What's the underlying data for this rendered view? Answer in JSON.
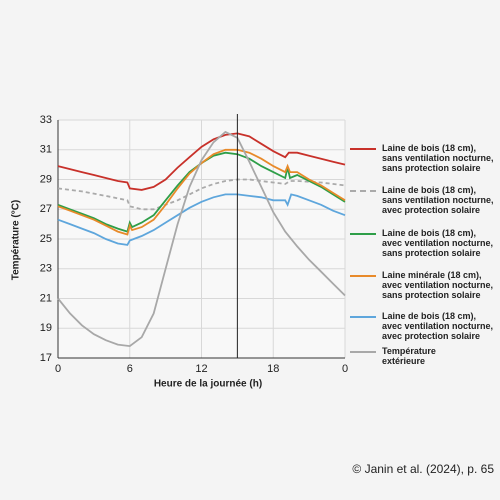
{
  "chart_data": {
    "type": "line",
    "xlabel": "Heure de la journée (h)",
    "ylabel": "Température (°C)",
    "xlim": [
      0,
      24
    ],
    "ylim": [
      17,
      33
    ],
    "xticks": [
      0,
      6,
      12,
      18,
      {
        "value": 24,
        "label": "0"
      }
    ],
    "yticks": [
      17,
      19,
      21,
      23,
      25,
      27,
      29,
      31,
      33
    ],
    "grid": true,
    "vline_x": 15,
    "legend": "right",
    "series": [
      {
        "name": "Laine de bois (18 cm),\nsans ventilation nocturne,\nsans protection solaire",
        "color": "#c8312a",
        "dash": false,
        "x": [
          0,
          1,
          2,
          3,
          4,
          5,
          5.8,
          6,
          7,
          8,
          9,
          10,
          11,
          12,
          13,
          14,
          15,
          16,
          17,
          18,
          19,
          19.3,
          20,
          21,
          22,
          23,
          24
        ],
        "values": [
          29.9,
          29.7,
          29.5,
          29.3,
          29.1,
          28.9,
          28.8,
          28.4,
          28.3,
          28.5,
          29.0,
          29.8,
          30.5,
          31.2,
          31.7,
          32.0,
          32.1,
          31.9,
          31.4,
          30.9,
          30.5,
          30.8,
          30.8,
          30.6,
          30.4,
          30.2,
          30.0
        ]
      },
      {
        "name": "Laine de bois (18 cm),\nsans ventilation nocturne,\navec protection solaire",
        "color": "#aaaaaa",
        "dash": true,
        "x": [
          0,
          2,
          4,
          5.8,
          6,
          7,
          8,
          9,
          10,
          11,
          12,
          13,
          14,
          15,
          16,
          17,
          18,
          19,
          19.4,
          20,
          22,
          24
        ],
        "values": [
          28.4,
          28.2,
          27.9,
          27.6,
          27.2,
          27.0,
          27.0,
          27.3,
          27.6,
          28.0,
          28.4,
          28.7,
          28.9,
          29.0,
          29.0,
          28.9,
          28.8,
          28.7,
          28.9,
          28.9,
          28.8,
          28.6
        ]
      },
      {
        "name": "Laine de bois (18 cm),\navec ventilation nocturne,\nsans protection solaire",
        "color": "#2e9e48",
        "dash": false,
        "x": [
          0,
          1,
          2,
          3,
          4,
          5,
          5.8,
          6,
          6.2,
          7,
          8,
          9,
          10,
          11,
          12,
          13,
          14,
          15,
          16,
          17,
          18,
          19,
          19.2,
          19.4,
          20,
          21,
          22,
          23,
          24
        ],
        "values": [
          27.3,
          27.0,
          26.7,
          26.4,
          26.0,
          25.7,
          25.5,
          26.1,
          25.8,
          26.1,
          26.6,
          27.6,
          28.6,
          29.5,
          30.1,
          30.6,
          30.8,
          30.7,
          30.4,
          29.9,
          29.5,
          29.1,
          29.8,
          29.1,
          29.3,
          28.9,
          28.5,
          28.0,
          27.5
        ]
      },
      {
        "name": "Laine minérale (18 cm),\navec ventilation nocturne,\nsans protection solaire",
        "color": "#e88a2a",
        "dash": false,
        "x": [
          0,
          1,
          2,
          3,
          4,
          5,
          5.8,
          6,
          6.2,
          7,
          8,
          9,
          10,
          11,
          12,
          13,
          14,
          15,
          16,
          17,
          18,
          19,
          19.2,
          19.4,
          20,
          21,
          22,
          23,
          24
        ],
        "values": [
          27.2,
          26.9,
          26.6,
          26.3,
          25.9,
          25.5,
          25.3,
          25.9,
          25.6,
          25.8,
          26.3,
          27.3,
          28.4,
          29.4,
          30.1,
          30.7,
          31.0,
          31.0,
          30.8,
          30.4,
          29.9,
          29.5,
          29.9,
          29.5,
          29.5,
          29.0,
          28.6,
          28.1,
          27.6
        ]
      },
      {
        "name": "Laine de bois (18 cm),\navec ventilation nocturne,\navec protection solaire",
        "color": "#5ea6dc",
        "dash": false,
        "x": [
          0,
          1,
          2,
          3,
          4,
          5,
          5.8,
          6,
          7,
          8,
          9,
          10,
          11,
          12,
          13,
          14,
          15,
          16,
          17,
          18,
          19,
          19.2,
          19.5,
          20,
          21,
          22,
          23,
          24
        ],
        "values": [
          26.3,
          26.0,
          25.7,
          25.4,
          25.0,
          24.7,
          24.6,
          24.9,
          25.2,
          25.6,
          26.1,
          26.6,
          27.1,
          27.5,
          27.8,
          28.0,
          28.0,
          27.9,
          27.8,
          27.6,
          27.6,
          27.3,
          28.0,
          27.9,
          27.6,
          27.3,
          26.9,
          26.6
        ]
      },
      {
        "name": "Température\nextérieure",
        "color": "#a8a8a8",
        "dash": false,
        "x": [
          0,
          1,
          2,
          3,
          4,
          5,
          6,
          7,
          8,
          9,
          10,
          11,
          12,
          13,
          14,
          15,
          16,
          17,
          18,
          19,
          20,
          21,
          22,
          23,
          24
        ],
        "values": [
          21.0,
          20.0,
          19.2,
          18.6,
          18.2,
          17.9,
          17.8,
          18.4,
          20.0,
          23.0,
          26.0,
          28.5,
          30.3,
          31.5,
          32.2,
          31.8,
          30.2,
          28.5,
          26.8,
          25.5,
          24.5,
          23.6,
          22.8,
          22.0,
          21.2
        ]
      }
    ],
    "source": "© Janin et al. (2024), p. 65"
  }
}
